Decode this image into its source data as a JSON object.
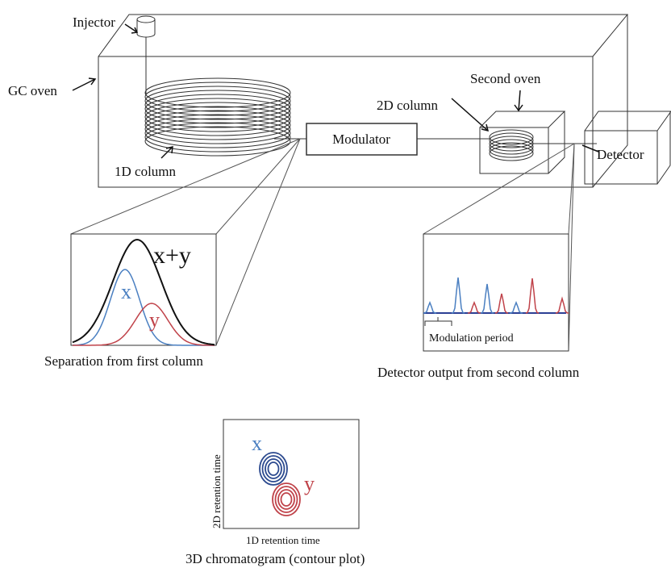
{
  "labels": {
    "injector": "Injector",
    "gc_oven": "GC oven",
    "column_1d": "1D column",
    "modulator": "Modulator",
    "column_2d": "2D column",
    "second_oven": "Second oven",
    "detector": "Detector"
  },
  "separation": {
    "combined": "x+y",
    "x": "x",
    "y": "y",
    "caption": "Separation from first column"
  },
  "detector_output": {
    "modulation_period": "Modulation period",
    "caption": "Detector output from second column"
  },
  "contour_plot": {
    "x": "x",
    "y": "y",
    "y_axis": "2D retention time",
    "x_axis": "1D retention time",
    "caption": "3D chromatogram (contour plot)"
  }
}
